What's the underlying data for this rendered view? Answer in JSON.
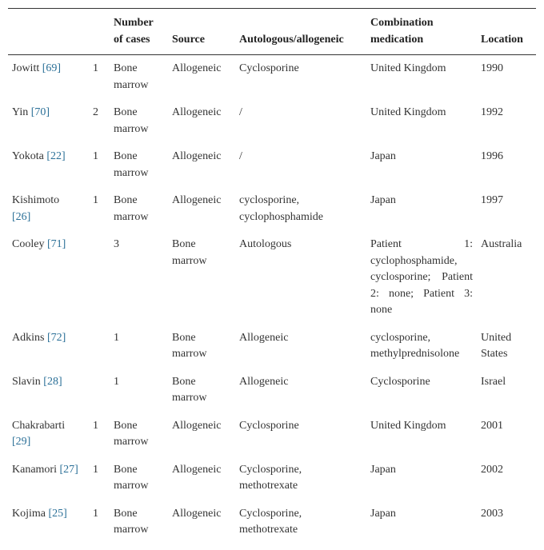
{
  "table": {
    "header": [
      null,
      null,
      "Number of cases",
      "Source",
      "Autologous/allogeneic",
      "Combination medication",
      "Location"
    ],
    "rows": [
      [
        {
          "name": "Jowitt",
          "ref": "[69]"
        },
        1,
        "Bone marrow",
        "Allogeneic",
        "Cyclosporine",
        "United Kingdom",
        1990
      ],
      [
        {
          "name": "Yin",
          "ref": "[70]"
        },
        2,
        "Bone marrow",
        "Allogeneic",
        "/",
        "United Kingdom",
        1992
      ],
      [
        {
          "name": "Yokota",
          "ref": "[22]"
        },
        1,
        "Bone marrow",
        "Allogeneic",
        "/",
        "Japan",
        1996
      ],
      [
        {
          "name": "Kishimoto",
          "ref": "[26]"
        },
        1,
        "Bone marrow",
        "Allogeneic",
        "cyclosporine, cyclophosphamide",
        "Japan",
        1997
      ],
      [
        {
          "name": "Cooley",
          "ref": "[71]"
        },
        null,
        3,
        "Bone marrow",
        "Autologous",
        "Patient 1: cyclophosphamide, cyclosporine; Patient 2: none; Patient 3: none",
        "Australia"
      ],
      [
        {
          "name": "Adkins",
          "ref": "[72]"
        },
        null,
        1,
        "Bone marrow",
        "Allogeneic",
        "cyclosporine, methylprednisolone",
        "United States"
      ],
      [
        {
          "name": "Slavin",
          "ref": "[28]"
        },
        null,
        1,
        "Bone marrow",
        "Allogeneic",
        "Cyclosporine",
        "Israel"
      ],
      [
        {
          "name": "Chakrabarti",
          "ref": "[29]"
        },
        1,
        "Bone marrow",
        "Allogeneic",
        "Cyclosporine",
        "United Kingdom",
        2001
      ],
      [
        {
          "name": "Kanamori",
          "ref": "[27]"
        },
        1,
        "Bone marrow",
        "Allogeneic",
        "Cyclosporine, methotrexate",
        "Japan",
        2002
      ],
      [
        {
          "name": "Kojima",
          "ref": "[25]"
        },
        1,
        "Bone marrow",
        "Allogeneic",
        "Cyclosporine, methotrexate",
        "Japan",
        2003
      ]
    ]
  }
}
